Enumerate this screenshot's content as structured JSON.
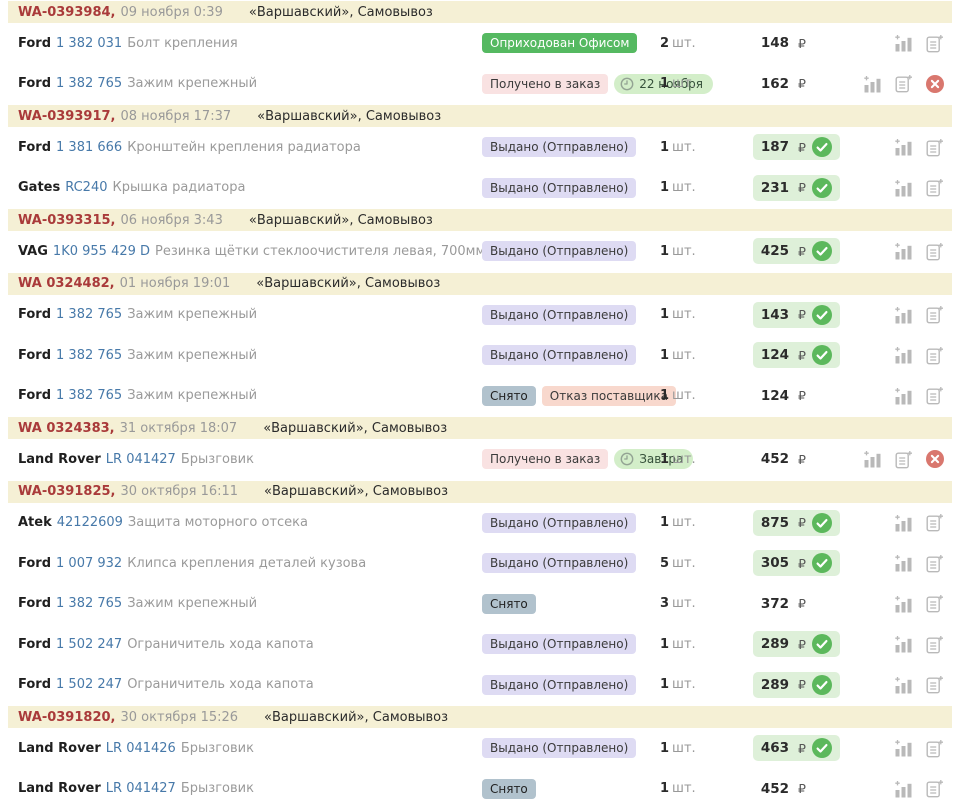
{
  "labels": {
    "qty_unit": "шт.",
    "currency": "₽"
  },
  "colors": {
    "group_header_bg": "#f5f0d5",
    "order_number": "#a93a3a",
    "part_link": "#4779a9",
    "item_name_gray": "#9a9a9a",
    "badge_green_solid": "#55b961",
    "badge_pink": "#f9e2e2",
    "badge_lavender": "#dedbf3",
    "badge_gray": "#b1c2cd",
    "badge_salmon": "#f8d8cd",
    "date_chip_green": "#d3eec9",
    "price_pill_green": "#def0d9",
    "check_green": "#5cb85c",
    "cancel_red": "#d9776e",
    "icon_gray": "#b9b9b9"
  },
  "orders": [
    {
      "number": "WA-0393984",
      "date": "09 ноября 0:39",
      "location": "«Варшавский», Самовывоз",
      "items": [
        {
          "brand": "Ford",
          "part_number": "1 382 031",
          "name": "Болт крепления",
          "statuses": [
            {
              "label": "Оприходован Офисом",
              "style": "green-solid"
            }
          ],
          "qty": "2",
          "price": "148",
          "price_confirmed": false,
          "cancellable": false
        },
        {
          "brand": "Ford",
          "part_number": "1 382 765",
          "name": "Зажим крепежный",
          "statuses": [
            {
              "label": "Получено в заказ",
              "style": "pink"
            }
          ],
          "date_chip": "22 ноября",
          "qty": "1",
          "price": "162",
          "price_confirmed": false,
          "cancellable": true
        }
      ]
    },
    {
      "number": "WA-0393917",
      "date": "08 ноября 17:37",
      "location": "«Варшавский», Самовывоз",
      "items": [
        {
          "brand": "Ford",
          "part_number": "1 381 666",
          "name": "Кронштейн крепления радиатора",
          "statuses": [
            {
              "label": "Выдано (Отправлено)",
              "style": "lavender"
            }
          ],
          "qty": "1",
          "price": "187",
          "price_confirmed": true,
          "cancellable": false
        },
        {
          "brand": "Gates",
          "part_number": "RC240",
          "name": "Крышка радиатора",
          "statuses": [
            {
              "label": "Выдано (Отправлено)",
              "style": "lavender"
            }
          ],
          "qty": "1",
          "price": "231",
          "price_confirmed": true,
          "cancellable": false
        }
      ]
    },
    {
      "number": "WA-0393315",
      "date": "06 ноября 3:43",
      "location": "«Варшавский», Самовывоз",
      "items": [
        {
          "brand": "VAG",
          "part_number": "1K0 955 429 D",
          "name": "Резинка щётки стеклоочистителя левая, 700мм",
          "statuses": [
            {
              "label": "Выдано (Отправлено)",
              "style": "lavender"
            }
          ],
          "qty": "1",
          "price": "425",
          "price_confirmed": true,
          "cancellable": false
        }
      ]
    },
    {
      "number": "WA 0324482",
      "date": "01 ноября 19:01",
      "location": "«Варшавский», Самовывоз",
      "items": [
        {
          "brand": "Ford",
          "part_number": "1 382 765",
          "name": "Зажим крепежный",
          "statuses": [
            {
              "label": "Выдано (Отправлено)",
              "style": "lavender"
            }
          ],
          "qty": "1",
          "price": "143",
          "price_confirmed": true,
          "cancellable": false
        },
        {
          "brand": "Ford",
          "part_number": "1 382 765",
          "name": "Зажим крепежный",
          "statuses": [
            {
              "label": "Выдано (Отправлено)",
              "style": "lavender"
            }
          ],
          "qty": "1",
          "price": "124",
          "price_confirmed": true,
          "cancellable": false
        },
        {
          "brand": "Ford",
          "part_number": "1 382 765",
          "name": "Зажим крепежный",
          "statuses": [
            {
              "label": "Снято",
              "style": "gray"
            },
            {
              "label": "Отказ поставщика",
              "style": "salmon"
            }
          ],
          "qty": "1",
          "price": "124",
          "price_confirmed": false,
          "cancellable": false
        }
      ]
    },
    {
      "number": "WA 0324383",
      "date": "31 октября 18:07",
      "location": "«Варшавский», Самовывоз",
      "items": [
        {
          "brand": "Land Rover",
          "part_number": "LR 041427",
          "name": "Брызговик",
          "statuses": [
            {
              "label": "Получено в заказ",
              "style": "pink"
            }
          ],
          "date_chip": "Завтра",
          "qty": "1",
          "price": "452",
          "price_confirmed": false,
          "cancellable": true
        }
      ]
    },
    {
      "number": "WA-0391825",
      "date": "30 октября 16:11",
      "location": "«Варшавский», Самовывоз",
      "items": [
        {
          "brand": "Atek",
          "part_number": "42122609",
          "name": "Защита моторного отсека",
          "statuses": [
            {
              "label": "Выдано (Отправлено)",
              "style": "lavender"
            }
          ],
          "qty": "1",
          "price": "875",
          "price_confirmed": true,
          "cancellable": false
        },
        {
          "brand": "Ford",
          "part_number": "1 007 932",
          "name": "Клипса крепления деталей кузова",
          "statuses": [
            {
              "label": "Выдано (Отправлено)",
              "style": "lavender"
            }
          ],
          "qty": "5",
          "price": "305",
          "price_confirmed": true,
          "cancellable": false
        },
        {
          "brand": "Ford",
          "part_number": "1 382 765",
          "name": "Зажим крепежный",
          "statuses": [
            {
              "label": "Снято",
              "style": "gray"
            }
          ],
          "qty": "3",
          "price": "372",
          "price_confirmed": false,
          "cancellable": false
        },
        {
          "brand": "Ford",
          "part_number": "1 502 247",
          "name": "Ограничитель хода капота",
          "statuses": [
            {
              "label": "Выдано (Отправлено)",
              "style": "lavender"
            }
          ],
          "qty": "1",
          "price": "289",
          "price_confirmed": true,
          "cancellable": false
        },
        {
          "brand": "Ford",
          "part_number": "1 502 247",
          "name": "Ограничитель хода капота",
          "statuses": [
            {
              "label": "Выдано (Отправлено)",
              "style": "lavender"
            }
          ],
          "qty": "1",
          "price": "289",
          "price_confirmed": true,
          "cancellable": false
        }
      ]
    },
    {
      "number": "WA-0391820",
      "date": "30 октября 15:26",
      "location": "«Варшавский», Самовывоз",
      "items": [
        {
          "brand": "Land Rover",
          "part_number": "LR 041426",
          "name": "Брызговик",
          "statuses": [
            {
              "label": "Выдано (Отправлено)",
              "style": "lavender"
            }
          ],
          "qty": "1",
          "price": "463",
          "price_confirmed": true,
          "cancellable": false
        },
        {
          "brand": "Land Rover",
          "part_number": "LR 041427",
          "name": "Брызговик",
          "statuses": [
            {
              "label": "Снято",
              "style": "gray"
            }
          ],
          "qty": "1",
          "price": "452",
          "price_confirmed": false,
          "cancellable": false
        }
      ]
    }
  ]
}
